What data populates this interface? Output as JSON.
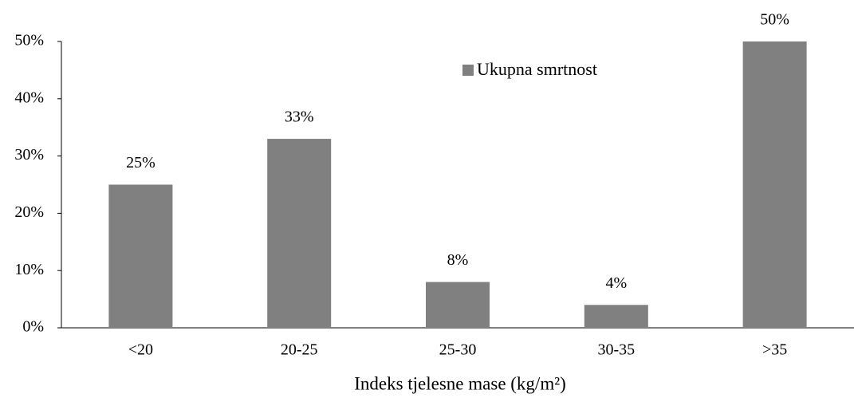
{
  "chart_data": {
    "type": "bar",
    "categories": [
      "<20",
      "20-25",
      "25-30",
      "30-35",
      ">35"
    ],
    "series": [
      {
        "name": "Ukupna smrtnost",
        "color": "#808080",
        "values": [
          25,
          33,
          8,
          4,
          50
        ],
        "value_labels": [
          "25%",
          "33%",
          "8%",
          "4%",
          "50%"
        ]
      }
    ],
    "ylim": [
      0,
      50
    ],
    "yticks": [
      {
        "value": 0,
        "label": "0%"
      },
      {
        "value": 10,
        "label": "10%"
      },
      {
        "value": 20,
        "label": "20%"
      },
      {
        "value": 30,
        "label": "30%"
      },
      {
        "value": 40,
        "label": "40%"
      },
      {
        "value": 50,
        "label": "50%"
      }
    ],
    "x_label": "Indeks tjelesne mase (kg/m²)",
    "legend": "top",
    "grid": false
  }
}
